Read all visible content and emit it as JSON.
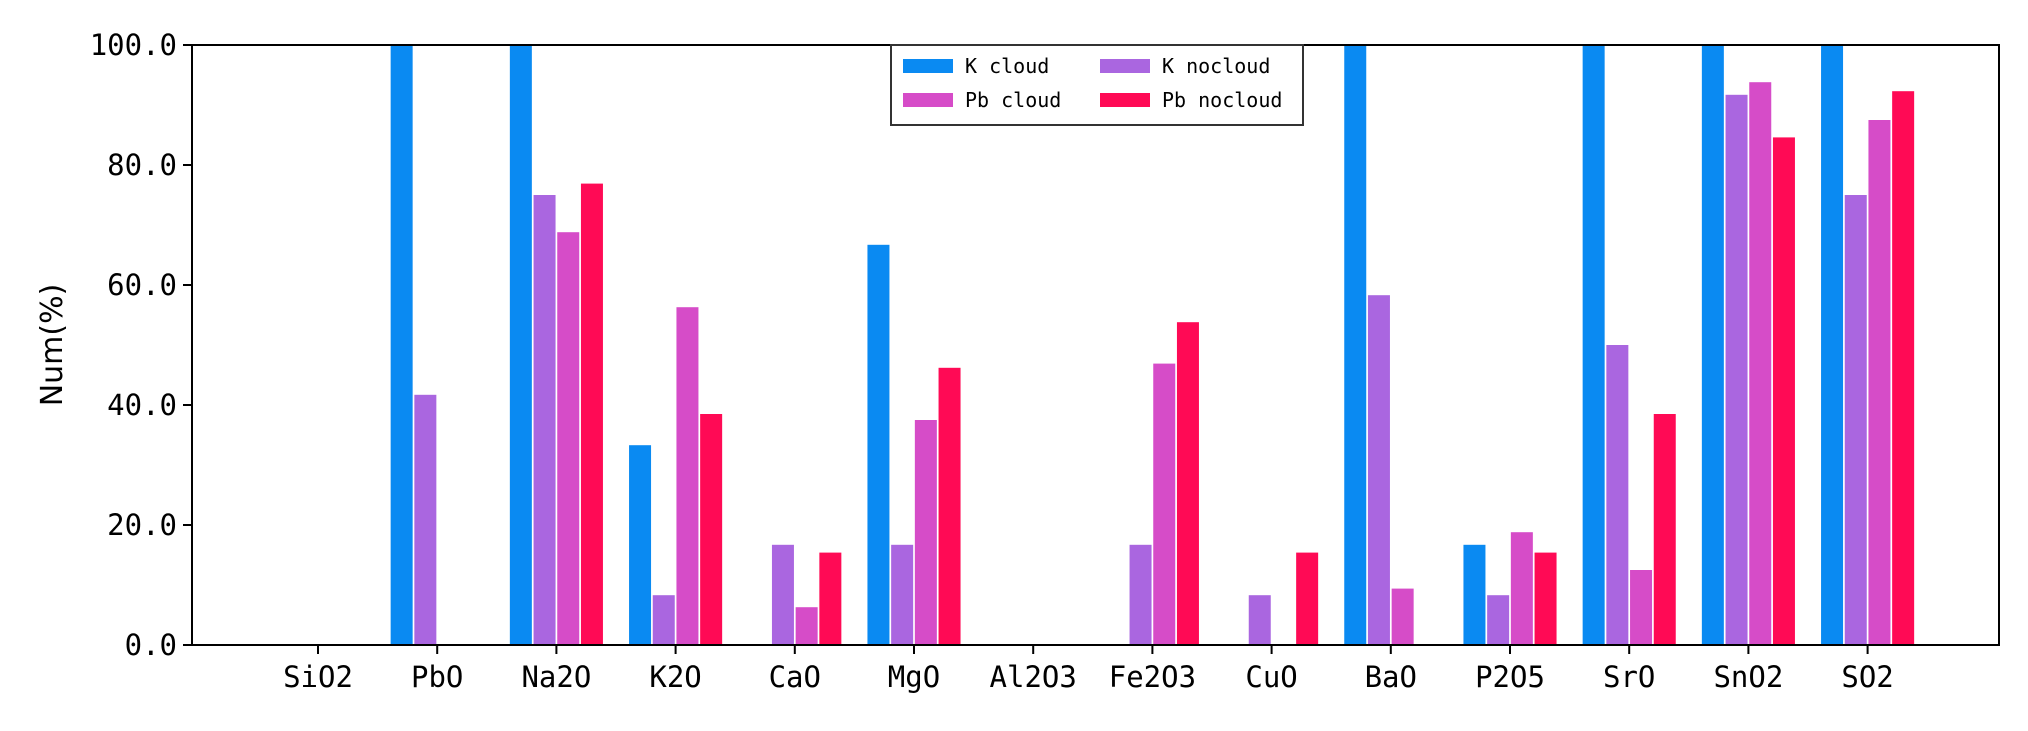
{
  "chart_data": {
    "type": "bar",
    "title": "",
    "xlabel": "",
    "ylabel": "Num(%)",
    "ylim": [
      0,
      100
    ],
    "yticks": [
      "0.0",
      "20.0",
      "40.0",
      "60.0",
      "80.0",
      "100.0"
    ],
    "ytick_values": [
      0,
      20,
      40,
      60,
      80,
      100
    ],
    "grid": false,
    "legend_position": "top-center",
    "categories": [
      "SiO2",
      "PbO",
      "Na2O",
      "K2O",
      "CaO",
      "MgO",
      "Al2O3",
      "Fe2O3",
      "CuO",
      "BaO",
      "P2O5",
      "SrO",
      "SnO2",
      "SO2"
    ],
    "series": [
      {
        "name": "K cloud",
        "color": "#0a8af2",
        "values": [
          0,
          100,
          100,
          33.3,
          0,
          66.7,
          0,
          0,
          0,
          100,
          16.7,
          100,
          100,
          100
        ]
      },
      {
        "name": "K nocloud",
        "color": "#aa66e0",
        "values": [
          0,
          41.7,
          75,
          8.3,
          16.7,
          16.7,
          0,
          16.7,
          8.3,
          58.3,
          8.3,
          50,
          91.7,
          75
        ]
      },
      {
        "name": "Pb cloud",
        "color": "#d64cc8",
        "values": [
          0,
          0,
          68.8,
          56.3,
          6.3,
          37.5,
          0,
          46.9,
          0,
          9.4,
          18.8,
          12.5,
          93.8,
          87.5
        ]
      },
      {
        "name": "Pb nocloud",
        "color": "#ff0a55",
        "values": [
          0,
          0,
          76.9,
          38.5,
          15.4,
          46.2,
          0,
          53.8,
          15.4,
          0,
          15.4,
          38.5,
          84.6,
          92.3
        ]
      }
    ]
  }
}
